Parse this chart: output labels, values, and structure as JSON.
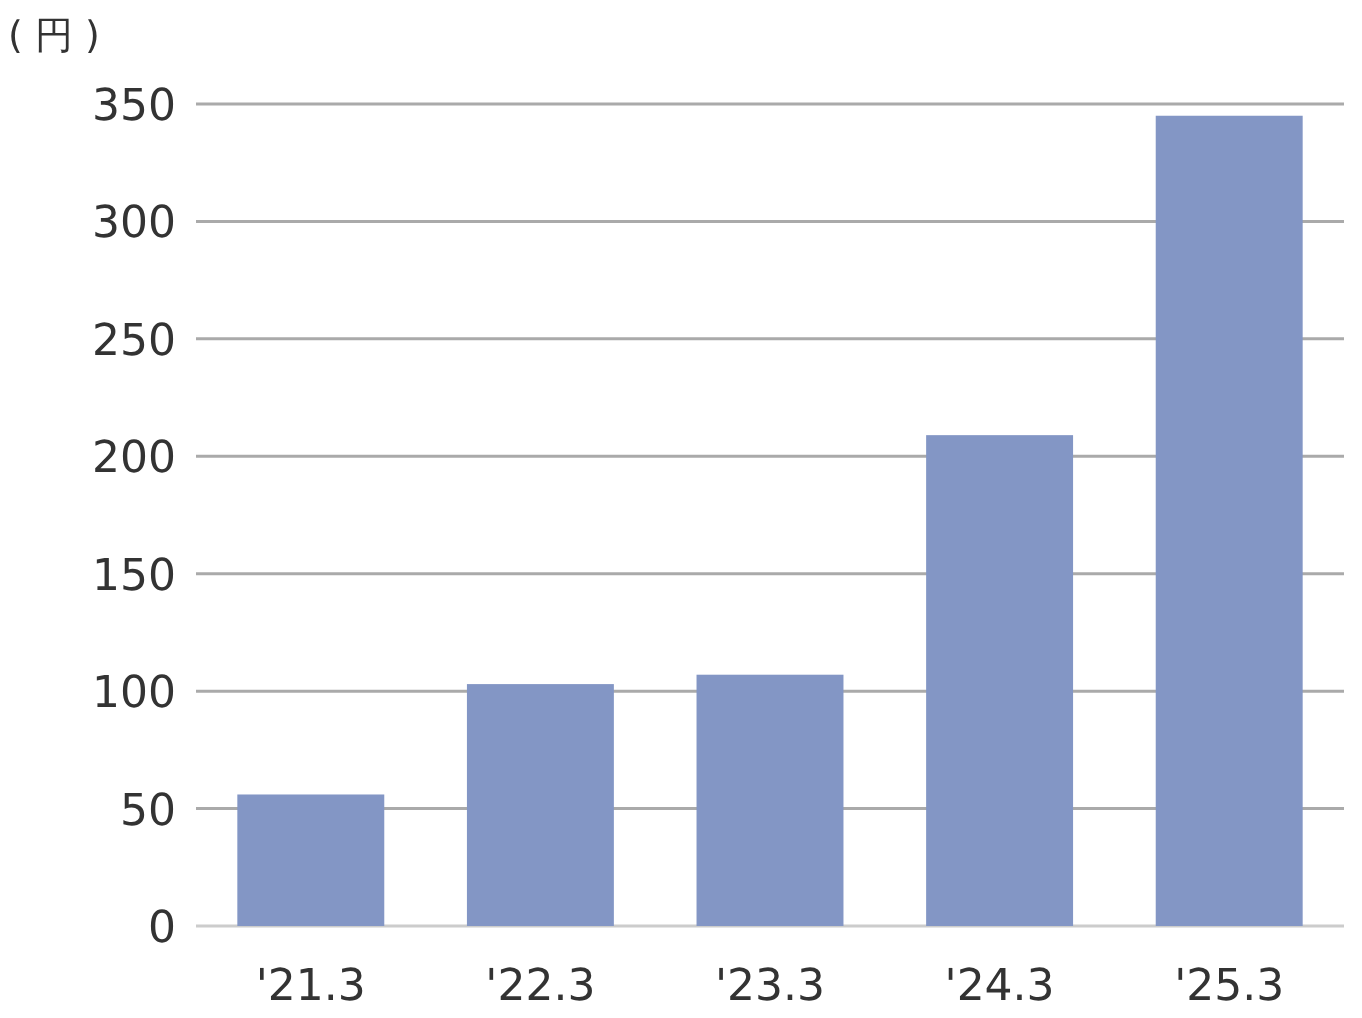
{
  "chart_data": {
    "type": "bar",
    "ylabel": "( 円 )",
    "categories": [
      "'21.3",
      "'22.3",
      "'23.3",
      "'24.3",
      "'25.3"
    ],
    "values": [
      56,
      103,
      107,
      209,
      345
    ],
    "color": "#8396c5",
    "ylim": [
      0,
      350
    ],
    "yticks": [
      0,
      50,
      100,
      150,
      200,
      250,
      300,
      350
    ],
    "grid": "y"
  }
}
